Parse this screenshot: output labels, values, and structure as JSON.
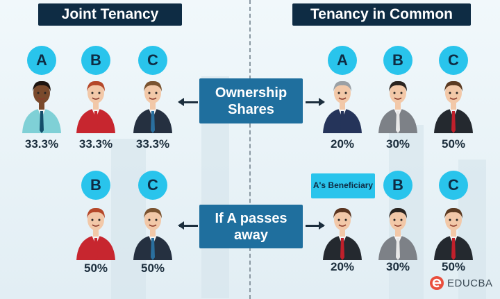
{
  "left_title": "Joint Tenancy",
  "right_title": "Tenancy in Common",
  "center_top": "Ownership Shares",
  "center_bottom": "If A passes away",
  "beneficiary_label": "A's Beneficiary",
  "brand": "EDUCBA",
  "colors": {
    "title_bg": "#0e2c44",
    "center_box": "#1f6f9e",
    "circle": "#29c4ec",
    "brand": "#e94e3c"
  },
  "joint_top": [
    {
      "label": "A",
      "share": "33.3%",
      "skin": "#7a4a2c",
      "hair": "#1d1410",
      "top": "#7fd0d6",
      "tie": "#134e6a"
    },
    {
      "label": "B",
      "share": "33.3%",
      "skin": "#f2c8a8",
      "hair": "#b5482a",
      "top": "#c7262f",
      "tie": "#c7262f"
    },
    {
      "label": "C",
      "share": "33.3%",
      "skin": "#f2c8a8",
      "hair": "#7a5330",
      "top": "#253040",
      "tie": "#2a6f9e"
    }
  ],
  "common_top": [
    {
      "label": "A",
      "share": "20%",
      "skin": "#f2c8a8",
      "hair": "#9aa0a5",
      "top": "#25345a",
      "tie": "#25345a"
    },
    {
      "label": "B",
      "share": "30%",
      "skin": "#f2c8a8",
      "hair": "#2a2420",
      "top": "#7d8187",
      "tie": "#e8e8e8"
    },
    {
      "label": "C",
      "share": "50%",
      "skin": "#f2c8a8",
      "hair": "#5a3a22",
      "top": "#24292f",
      "tie": "#c0202b"
    }
  ],
  "joint_bottom": [
    {
      "label": "B",
      "share": "50%",
      "skin": "#f2c8a8",
      "hair": "#b5482a",
      "top": "#c7262f",
      "tie": "#c7262f"
    },
    {
      "label": "C",
      "share": "50%",
      "skin": "#f2c8a8",
      "hair": "#7a5330",
      "top": "#253040",
      "tie": "#2a6f9e"
    }
  ],
  "common_bottom": [
    {
      "label": "",
      "share": "20%",
      "skin": "#f2c8a8",
      "hair": "#5a3520",
      "top": "#24292f",
      "tie": "#c0202b"
    },
    {
      "label": "B",
      "share": "30%",
      "skin": "#f2c8a8",
      "hair": "#2a2420",
      "top": "#7d8187",
      "tie": "#e8e8e8"
    },
    {
      "label": "C",
      "share": "50%",
      "skin": "#f2c8a8",
      "hair": "#5a3a22",
      "top": "#24292f",
      "tie": "#c0202b"
    }
  ]
}
